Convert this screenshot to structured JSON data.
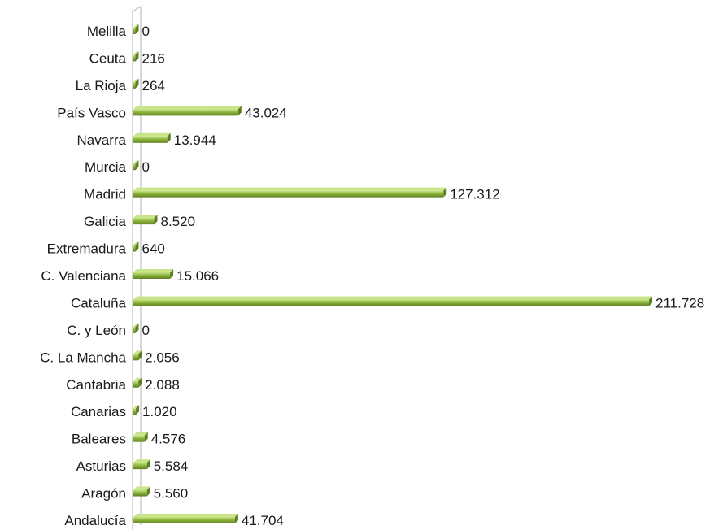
{
  "chart_data": {
    "type": "bar",
    "orientation": "horizontal",
    "categories": [
      "Andalucía",
      "Aragón",
      "Asturias",
      "Baleares",
      "Canarias",
      "Cantabria",
      "C. La Mancha",
      "C. y León",
      "Cataluña",
      "C. Valenciana",
      "Extremadura",
      "Galicia",
      "Madrid",
      "Murcia",
      "Navarra",
      "País Vasco",
      "La Rioja",
      "Ceuta",
      "Melilla"
    ],
    "values": [
      41704,
      5560,
      5584,
      4576,
      1020,
      2088,
      2056,
      0,
      211728,
      15066,
      640,
      8520,
      127312,
      0,
      13944,
      43024,
      264,
      216,
      0
    ],
    "value_labels": [
      "41.704",
      "5.560",
      "5.584",
      "4.576",
      "1.020",
      "2.088",
      "2.056",
      "0",
      "211.728",
      "15.066",
      "640",
      "8.520",
      "127.312",
      "0",
      "13.944",
      "43.024",
      "264",
      "216",
      "0"
    ],
    "title": "",
    "xlabel": "",
    "ylabel": "",
    "xlim": [
      0,
      211728
    ],
    "grid": false,
    "legend": "none",
    "bar_color": "#8db63c",
    "bar_highlight": "#c9e58a",
    "bar_shadow": "#5f7f22",
    "axis_color": "#bfbfbf"
  }
}
